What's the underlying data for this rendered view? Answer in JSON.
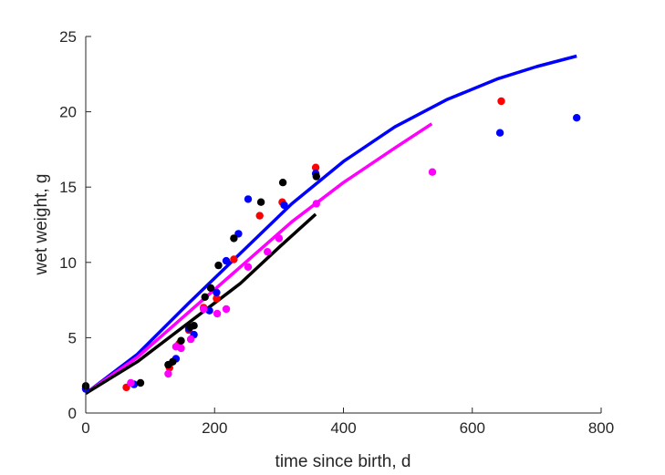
{
  "chart_data": {
    "type": "scatter",
    "title": "",
    "xlabel": "time since birth, d",
    "ylabel": "wet weight, g",
    "xlim": [
      0,
      800
    ],
    "ylim": [
      0,
      25
    ],
    "xticks": [
      0,
      200,
      400,
      600,
      800
    ],
    "yticks": [
      0,
      5,
      10,
      15,
      20,
      25
    ],
    "grid": false,
    "legend": "none",
    "series": [
      {
        "color": "#ff0000",
        "points": [
          [
            0,
            1.7
          ],
          [
            63,
            1.7
          ],
          [
            130,
            3.0
          ],
          [
            145,
            4.6
          ],
          [
            160,
            5.5
          ],
          [
            183,
            7.0
          ],
          [
            203,
            7.6
          ],
          [
            230,
            10.2
          ],
          [
            270,
            13.1
          ],
          [
            305,
            14.0
          ],
          [
            357,
            16.3
          ],
          [
            645,
            20.7
          ]
        ]
      },
      {
        "color": "#0000ff",
        "points": [
          [
            0,
            1.6
          ],
          [
            75,
            1.9
          ],
          [
            140,
            3.6
          ],
          [
            160,
            5.6
          ],
          [
            168,
            5.2
          ],
          [
            192,
            6.8
          ],
          [
            203,
            8.0
          ],
          [
            218,
            10.1
          ],
          [
            237,
            11.9
          ],
          [
            252,
            14.2
          ],
          [
            308,
            13.8
          ],
          [
            357,
            15.9
          ],
          [
            643,
            18.6
          ],
          [
            762,
            19.6
          ]
        ]
      },
      {
        "color": "#ff00ff",
        "points": [
          [
            70,
            2.0
          ],
          [
            128,
            2.6
          ],
          [
            140,
            4.4
          ],
          [
            148,
            4.3
          ],
          [
            163,
            4.9
          ],
          [
            183,
            6.9
          ],
          [
            204,
            6.6
          ],
          [
            218,
            6.9
          ],
          [
            252,
            9.7
          ],
          [
            282,
            10.7
          ],
          [
            300,
            11.6
          ],
          [
            358,
            13.9
          ],
          [
            538,
            16.0
          ]
        ]
      },
      {
        "color": "#000000",
        "points": [
          [
            0,
            1.8
          ],
          [
            85,
            2.0
          ],
          [
            128,
            3.2
          ],
          [
            135,
            3.4
          ],
          [
            148,
            4.8
          ],
          [
            162,
            5.7
          ],
          [
            168,
            5.8
          ],
          [
            185,
            7.7
          ],
          [
            194,
            8.3
          ],
          [
            206,
            9.8
          ],
          [
            230,
            11.6
          ],
          [
            272,
            14.0
          ],
          [
            306,
            15.3
          ],
          [
            358,
            15.7
          ]
        ]
      }
    ],
    "curves": [
      {
        "color": "#0000ff",
        "points": [
          [
            0,
            1.3
          ],
          [
            80,
            3.9
          ],
          [
            160,
            7.3
          ],
          [
            240,
            10.6
          ],
          [
            320,
            13.9
          ],
          [
            400,
            16.7
          ],
          [
            480,
            19.0
          ],
          [
            560,
            20.8
          ],
          [
            640,
            22.2
          ],
          [
            700,
            23.0
          ],
          [
            762,
            23.7
          ]
        ]
      },
      {
        "color": "#ff00ff",
        "points": [
          [
            0,
            1.3
          ],
          [
            80,
            3.7
          ],
          [
            160,
            6.7
          ],
          [
            240,
            9.7
          ],
          [
            320,
            12.7
          ],
          [
            400,
            15.3
          ],
          [
            480,
            17.6
          ],
          [
            537,
            19.2
          ]
        ]
      },
      {
        "color": "#000000",
        "points": [
          [
            0,
            1.3
          ],
          [
            80,
            3.4
          ],
          [
            160,
            6.0
          ],
          [
            240,
            8.6
          ],
          [
            300,
            11.0
          ],
          [
            357,
            13.2
          ]
        ]
      }
    ]
  }
}
